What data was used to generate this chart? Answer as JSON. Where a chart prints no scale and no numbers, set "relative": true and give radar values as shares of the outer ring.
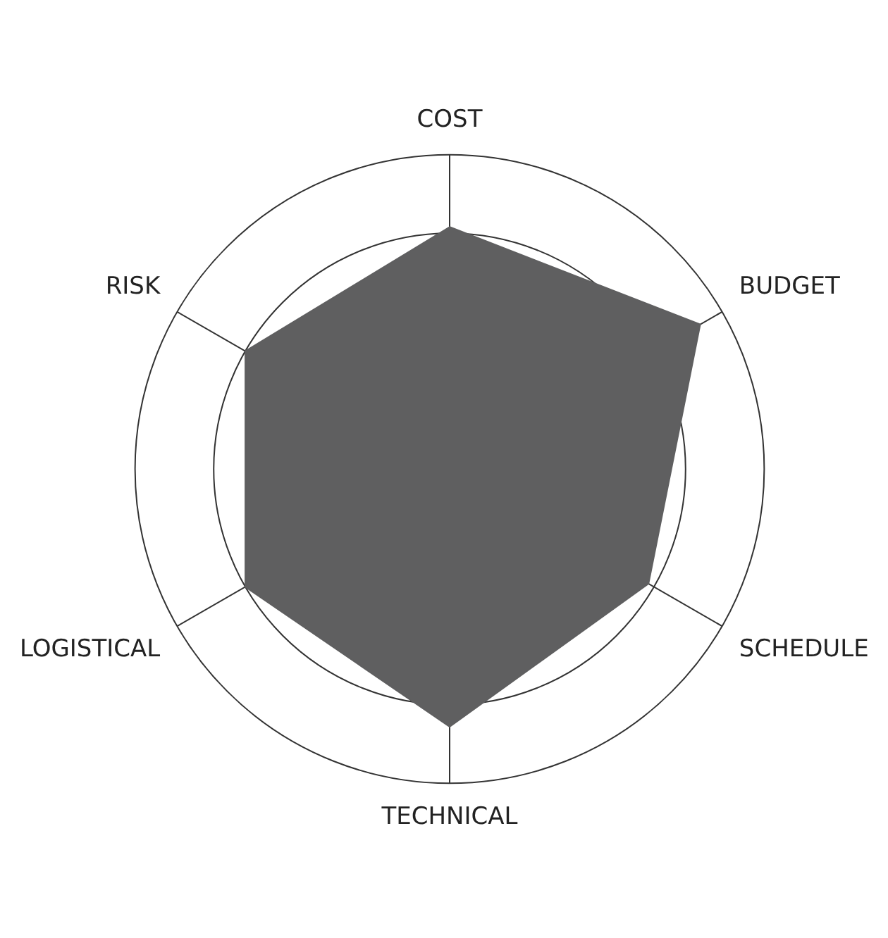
{
  "chart_data": {
    "type": "radar",
    "categories": [
      "COST",
      "BUDGET",
      "SCHEDULE",
      "TECHNICAL",
      "LOGISTICAL",
      "RISK"
    ],
    "relative": true,
    "grid": true,
    "marker": "none",
    "series": [
      {
        "color": "#5f5f60",
        "values": [
          0.77,
          0.92,
          0.73,
          0.82,
          0.75,
          0.75
        ]
      }
    ]
  }
}
